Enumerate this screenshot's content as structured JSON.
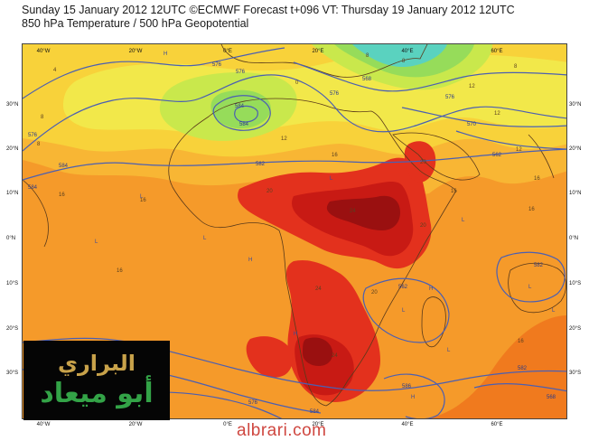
{
  "header": {
    "title_line1": "Sunday 15 January 2012 12UTC ©ECMWF Forecast t+096 VT: Thursday 19 January 2012 12UTC",
    "title_line2": "850 hPa Temperature / 500 hPa Geopotential"
  },
  "map": {
    "lat_labels": [
      "30°N",
      "20°N",
      "10°N",
      "0°N",
      "10°S",
      "20°S",
      "30°S"
    ],
    "lon_labels": [
      "40°W",
      "20°W",
      "0°E",
      "20°E",
      "40°E",
      "60°E"
    ],
    "contour_labels": [
      "576",
      "584",
      "584",
      "576",
      "576",
      "570",
      "562",
      "582",
      "584",
      "576",
      "582",
      "562",
      "568",
      "576",
      "582",
      "584",
      "586",
      "584",
      "576",
      "568"
    ],
    "temperature_labels": [
      "0",
      "8",
      "4",
      "8",
      "12",
      "16",
      "16",
      "16",
      "16",
      "16",
      "12",
      "12",
      "16",
      "20",
      "24",
      "24",
      "20",
      "20",
      "20",
      "24",
      "16",
      "16",
      "8",
      "12",
      "8",
      "8"
    ],
    "pressure_markers": [
      "H",
      "H",
      "H",
      "H",
      "L",
      "L",
      "L",
      "L",
      "L",
      "H",
      "L",
      "L",
      "H",
      "L",
      "L"
    ],
    "colors": {
      "ocean_orange": "#f07a1e",
      "orange": "#f59a2a",
      "light_orange": "#f8b634",
      "yellow": "#f8d23a",
      "pale_yellow": "#f2e84a",
      "yellow_green": "#c9e84c",
      "green": "#96dc5a",
      "cyan": "#5ad2bf",
      "red": "#e3311d",
      "deep_red": "#c81a14",
      "dark_red": "#9a1010",
      "contour_blue": "#4b5fb2",
      "coast": "#5a3a1a"
    }
  },
  "logo": {
    "line1": "البراري",
    "line2": "أبو ميعاد"
  },
  "watermark": {
    "text": "albrari.com"
  }
}
